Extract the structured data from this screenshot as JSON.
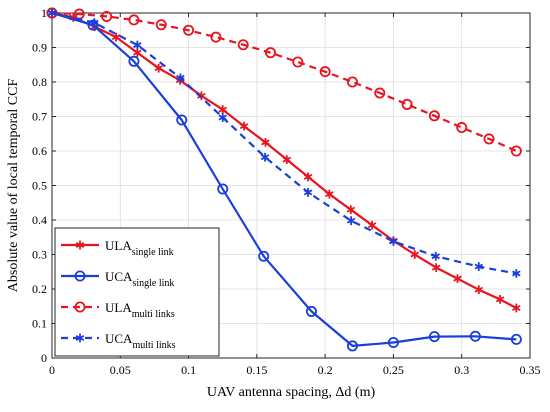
{
  "chart_data": {
    "type": "line",
    "xlabel": "UAV antenna spacing, Δd (m)",
    "ylabel": "Absolute value of local temporal CCF",
    "xlim": [
      0,
      0.35
    ],
    "ylim": [
      0,
      1
    ],
    "xticks": [
      0,
      0.05,
      0.1,
      0.15,
      0.2,
      0.25,
      0.3,
      0.35
    ],
    "xtick_labels": [
      "0",
      "0.05",
      "0.1",
      "0.15",
      "0.2",
      "0.25",
      "0.3",
      "0.35"
    ],
    "yticks": [
      0,
      0.1,
      0.2,
      0.3,
      0.4,
      0.5,
      0.6,
      0.7,
      0.8,
      0.9,
      1
    ],
    "ytick_labels": [
      "0",
      "0.1",
      "0.2",
      "0.3",
      "0.4",
      "0.5",
      "0.6",
      "0.7",
      "0.8",
      "0.9",
      "1"
    ],
    "grid": true,
    "legend_position": "bottom-left",
    "series": [
      {
        "name": "ULA",
        "subscript": "single link",
        "color": "#e8141e",
        "line_style": "solid",
        "marker": "asterisk",
        "x": [
          0,
          0.0156,
          0.0313,
          0.0469,
          0.0625,
          0.0781,
          0.0938,
          0.1094,
          0.125,
          0.1406,
          0.1563,
          0.1719,
          0.1875,
          0.2031,
          0.2188,
          0.2344,
          0.25,
          0.2656,
          0.2813,
          0.2969,
          0.3125,
          0.3281,
          0.34
        ],
        "y": [
          1.0,
          0.987,
          0.96,
          0.93,
          0.885,
          0.84,
          0.805,
          0.76,
          0.72,
          0.672,
          0.625,
          0.575,
          0.525,
          0.475,
          0.43,
          0.385,
          0.34,
          0.3,
          0.262,
          0.23,
          0.198,
          0.17,
          0.145
        ]
      },
      {
        "name": "UCA",
        "subscript": "single link",
        "color": "#1a3fdc",
        "line_style": "solid",
        "marker": "circle",
        "x": [
          0,
          0.03,
          0.06,
          0.095,
          0.125,
          0.155,
          0.19,
          0.22,
          0.25,
          0.28,
          0.31,
          0.34
        ],
        "y": [
          1.0,
          0.965,
          0.86,
          0.69,
          0.49,
          0.295,
          0.135,
          0.035,
          0.045,
          0.062,
          0.063,
          0.054
        ]
      },
      {
        "name": "ULA",
        "subscript": "multi links",
        "color": "#e8141e",
        "line_style": "dashed",
        "marker": "circle",
        "x": [
          0,
          0.02,
          0.04,
          0.06,
          0.08,
          0.1,
          0.12,
          0.14,
          0.16,
          0.18,
          0.2,
          0.22,
          0.24,
          0.26,
          0.28,
          0.3,
          0.32,
          0.34
        ],
        "y": [
          1.0,
          0.997,
          0.99,
          0.98,
          0.966,
          0.95,
          0.93,
          0.908,
          0.885,
          0.858,
          0.83,
          0.8,
          0.768,
          0.735,
          0.702,
          0.668,
          0.635,
          0.6
        ]
      },
      {
        "name": "UCA",
        "subscript": "multi links",
        "color": "#1a3fdc",
        "line_style": "dashed",
        "marker": "asterisk",
        "x": [
          0,
          0.031,
          0.0625,
          0.094,
          0.125,
          0.156,
          0.1875,
          0.219,
          0.25,
          0.281,
          0.3125,
          0.34
        ],
        "y": [
          1.0,
          0.972,
          0.907,
          0.812,
          0.697,
          0.582,
          0.48,
          0.398,
          0.338,
          0.295,
          0.265,
          0.245
        ]
      }
    ]
  }
}
